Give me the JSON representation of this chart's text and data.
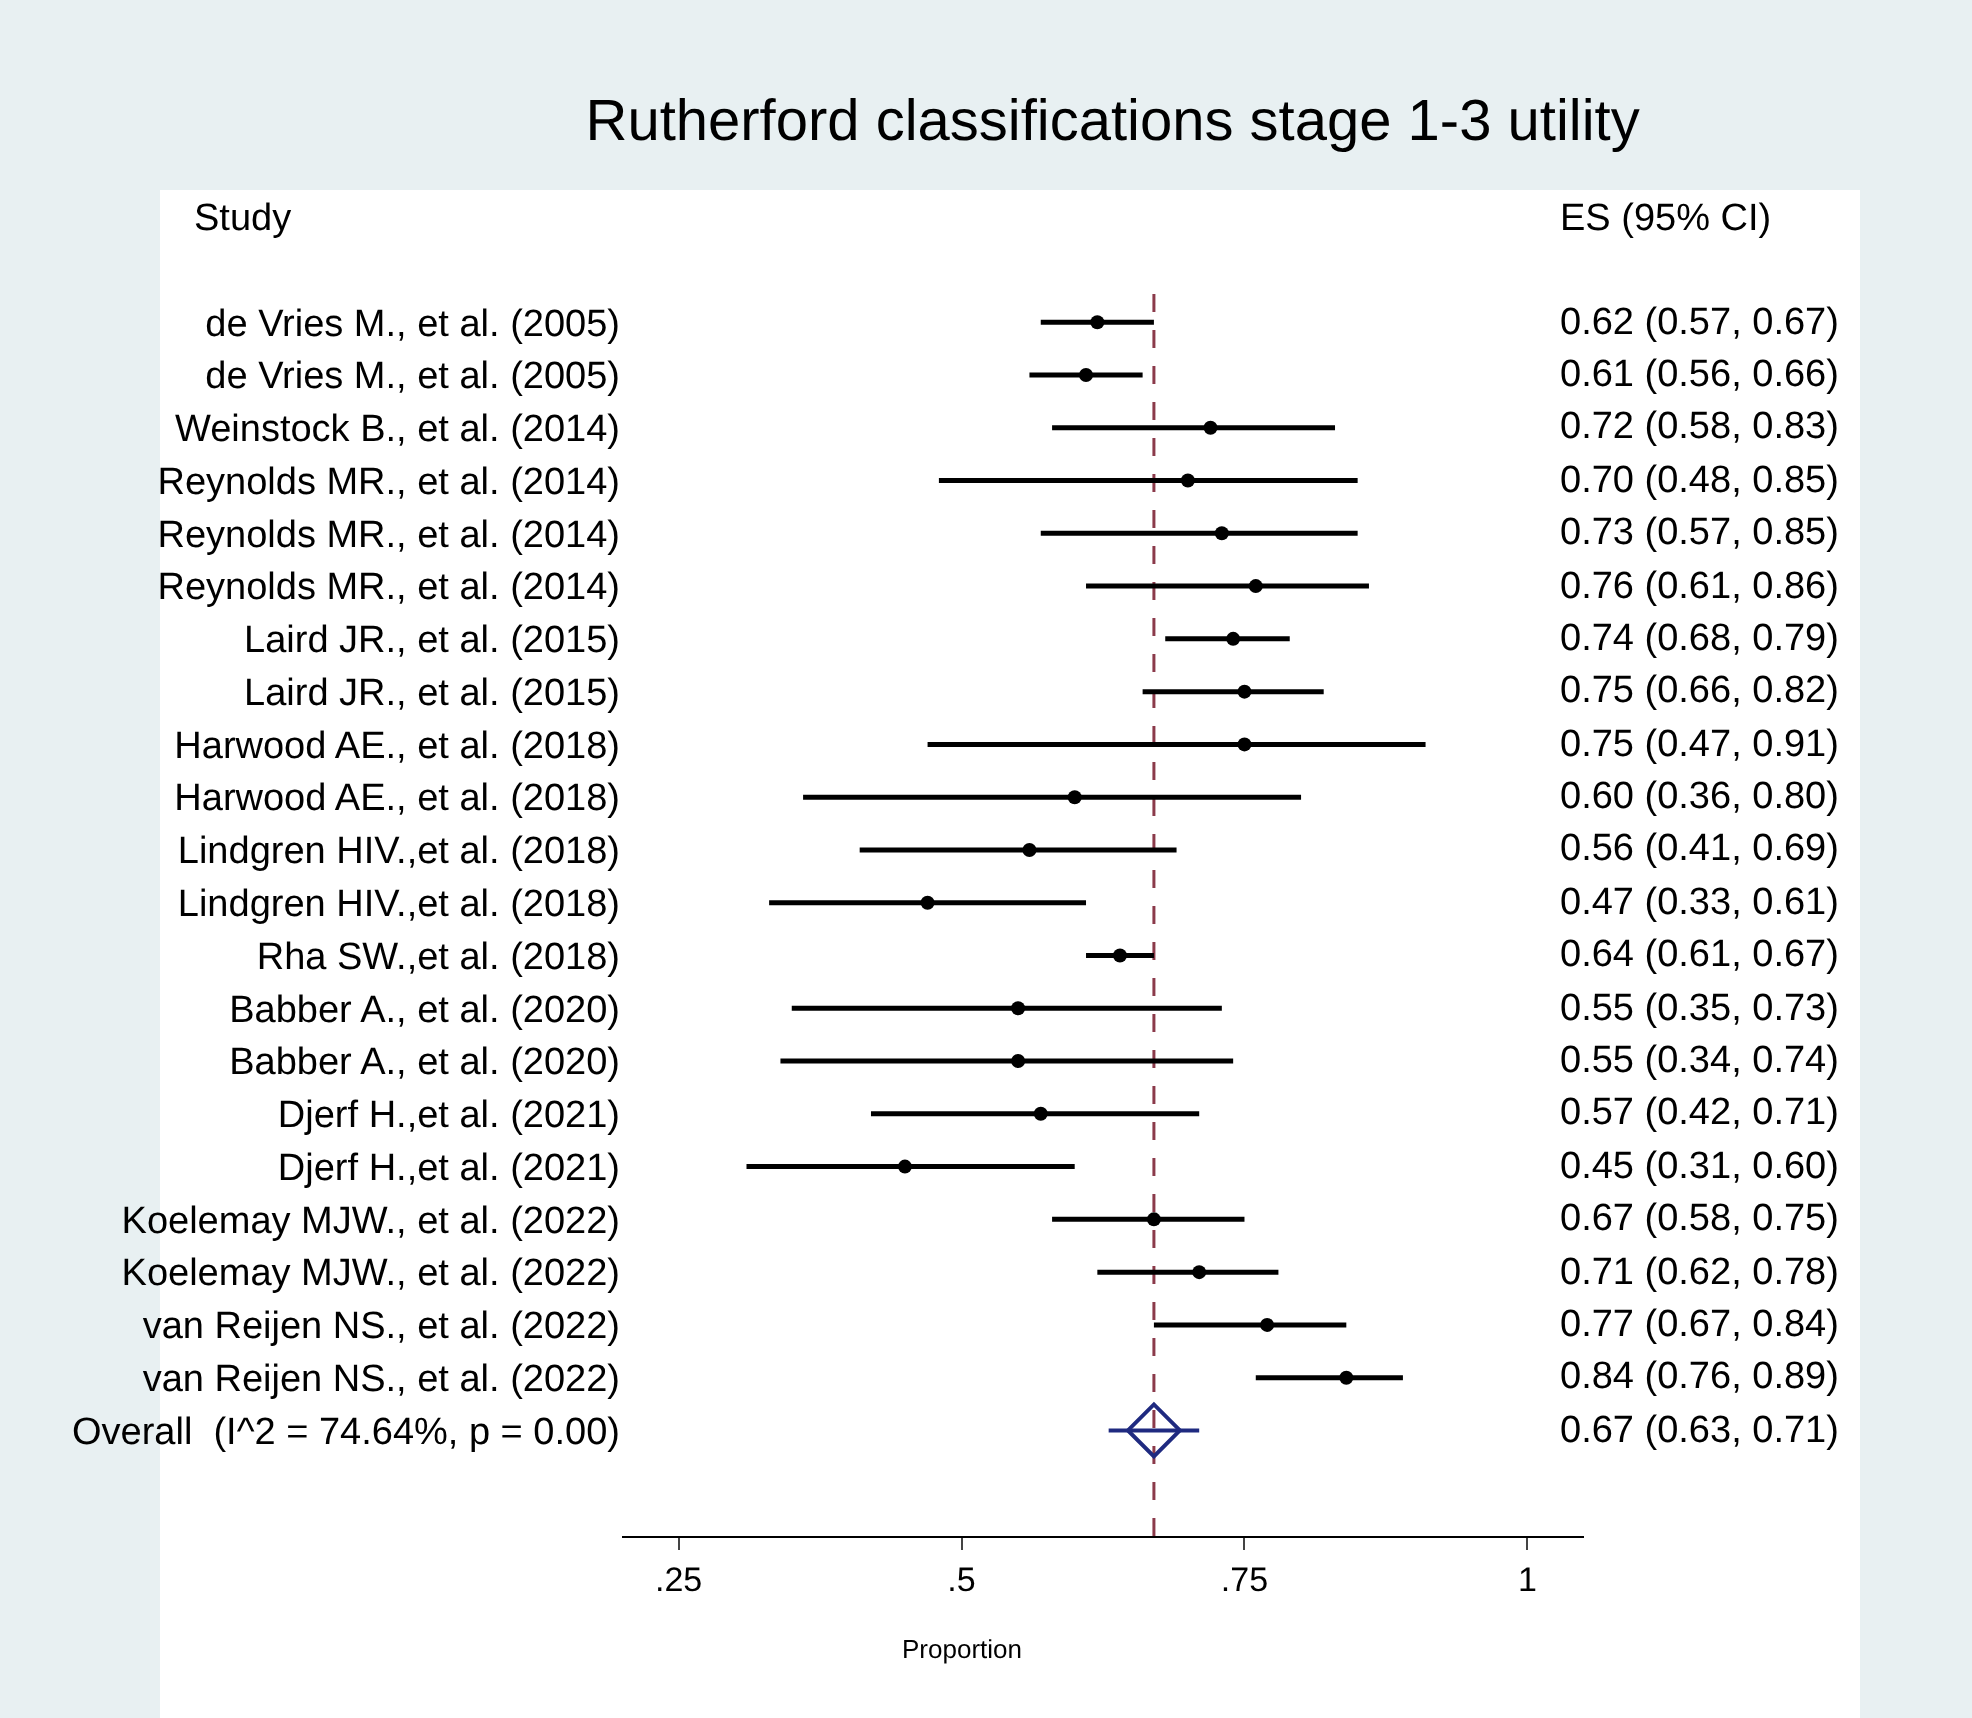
{
  "chart_data": {
    "type": "scatter",
    "orientation": "horizontal",
    "title": "Rutherford classifications stage 1-3 utility",
    "xlabel": "Proportion",
    "annotations": [
      "Study",
      "ES (95% CI)"
    ],
    "categories": [
      "de Vries M., et al. (2005)",
      "de Vries M., et al. (2005)",
      "Weinstock B., et al. (2014)",
      "Reynolds MR., et al. (2014)",
      "Reynolds MR., et al. (2014)",
      "Reynolds MR., et al. (2014)",
      "Laird JR., et al. (2015)",
      "Laird JR., et al. (2015)",
      "Harwood AE., et al. (2018)",
      "Harwood AE., et al. (2018)",
      "Lindgren HIV.,et al. (2018)",
      "Lindgren HIV.,et al. (2018)",
      "Rha SW.,et al. (2018)",
      "Babber A., et al. (2020)",
      "Babber A., et al. (2020)",
      "Djerf H.,et al. (2021)",
      "Djerf H.,et al. (2021)",
      "Koelemay MJW., et al. (2022)",
      "Koelemay MJW., et al. (2022)",
      "van Reijen NS., et al. (2022)",
      "van Reijen NS., et al. (2022)",
      "Overall  (I^2 = 74.64%, p = 0.00)"
    ],
    "series": [
      {
        "color": "#000000",
        "marker": "circle",
        "values": [
          0.62,
          0.61,
          0.72,
          0.7,
          0.73,
          0.76,
          0.74,
          0.75,
          0.75,
          0.6,
          0.56,
          0.47,
          0.64,
          0.55,
          0.55,
          0.57,
          0.45,
          0.67,
          0.71,
          0.77,
          0.84,
          null
        ],
        "errors": [
          [
            0.57,
            0.67
          ],
          [
            0.56,
            0.66
          ],
          [
            0.58,
            0.83
          ],
          [
            0.48,
            0.85
          ],
          [
            0.57,
            0.85
          ],
          [
            0.61,
            0.86
          ],
          [
            0.68,
            0.79
          ],
          [
            0.66,
            0.82
          ],
          [
            0.47,
            0.91
          ],
          [
            0.36,
            0.8
          ],
          [
            0.41,
            0.69
          ],
          [
            0.33,
            0.61
          ],
          [
            0.61,
            0.67
          ],
          [
            0.35,
            0.73
          ],
          [
            0.34,
            0.74
          ],
          [
            0.42,
            0.71
          ],
          [
            0.31,
            0.6
          ],
          [
            0.58,
            0.75
          ],
          [
            0.62,
            0.78
          ],
          [
            0.67,
            0.84
          ],
          [
            0.76,
            0.89
          ],
          null
        ]
      },
      {
        "color": "#1f2a80",
        "marker": "diamond",
        "values": [
          null,
          null,
          null,
          null,
          null,
          null,
          null,
          null,
          null,
          null,
          null,
          null,
          null,
          null,
          null,
          null,
          null,
          null,
          null,
          null,
          null,
          0.67
        ],
        "errors": [
          null,
          null,
          null,
          null,
          null,
          null,
          null,
          null,
          null,
          null,
          null,
          null,
          null,
          null,
          null,
          null,
          null,
          null,
          null,
          null,
          null,
          [
            0.63,
            0.71
          ]
        ]
      }
    ],
    "value_labels": [
      "0.62 (0.57, 0.67)",
      "0.61 (0.56, 0.66)",
      "0.72 (0.58, 0.83)",
      "0.70 (0.48, 0.85)",
      "0.73 (0.57, 0.85)",
      "0.76 (0.61, 0.86)",
      "0.74 (0.68, 0.79)",
      "0.75 (0.66, 0.82)",
      "0.75 (0.47, 0.91)",
      "0.60 (0.36, 0.80)",
      "0.56 (0.41, 0.69)",
      "0.47 (0.33, 0.61)",
      "0.64 (0.61, 0.67)",
      "0.55 (0.35, 0.73)",
      "0.55 (0.34, 0.74)",
      "0.57 (0.42, 0.71)",
      "0.45 (0.31, 0.60)",
      "0.67 (0.58, 0.75)",
      "0.71 (0.62, 0.78)",
      "0.77 (0.67, 0.84)",
      "0.84 (0.76, 0.89)",
      "0.67 (0.63, 0.71)"
    ],
    "xlim": [
      0.2,
      1.05
    ],
    "xticks": [
      {
        "value": 0.25,
        "label": ".25"
      },
      {
        "value": 0.5,
        "label": ".5"
      },
      {
        "value": 0.75,
        "label": ".75"
      },
      1
    ],
    "ref_lines": [
      {
        "axis": "x",
        "value": 0.67,
        "color": "#8b3a4a",
        "line_style": "dashed"
      }
    ],
    "grid": false
  }
}
